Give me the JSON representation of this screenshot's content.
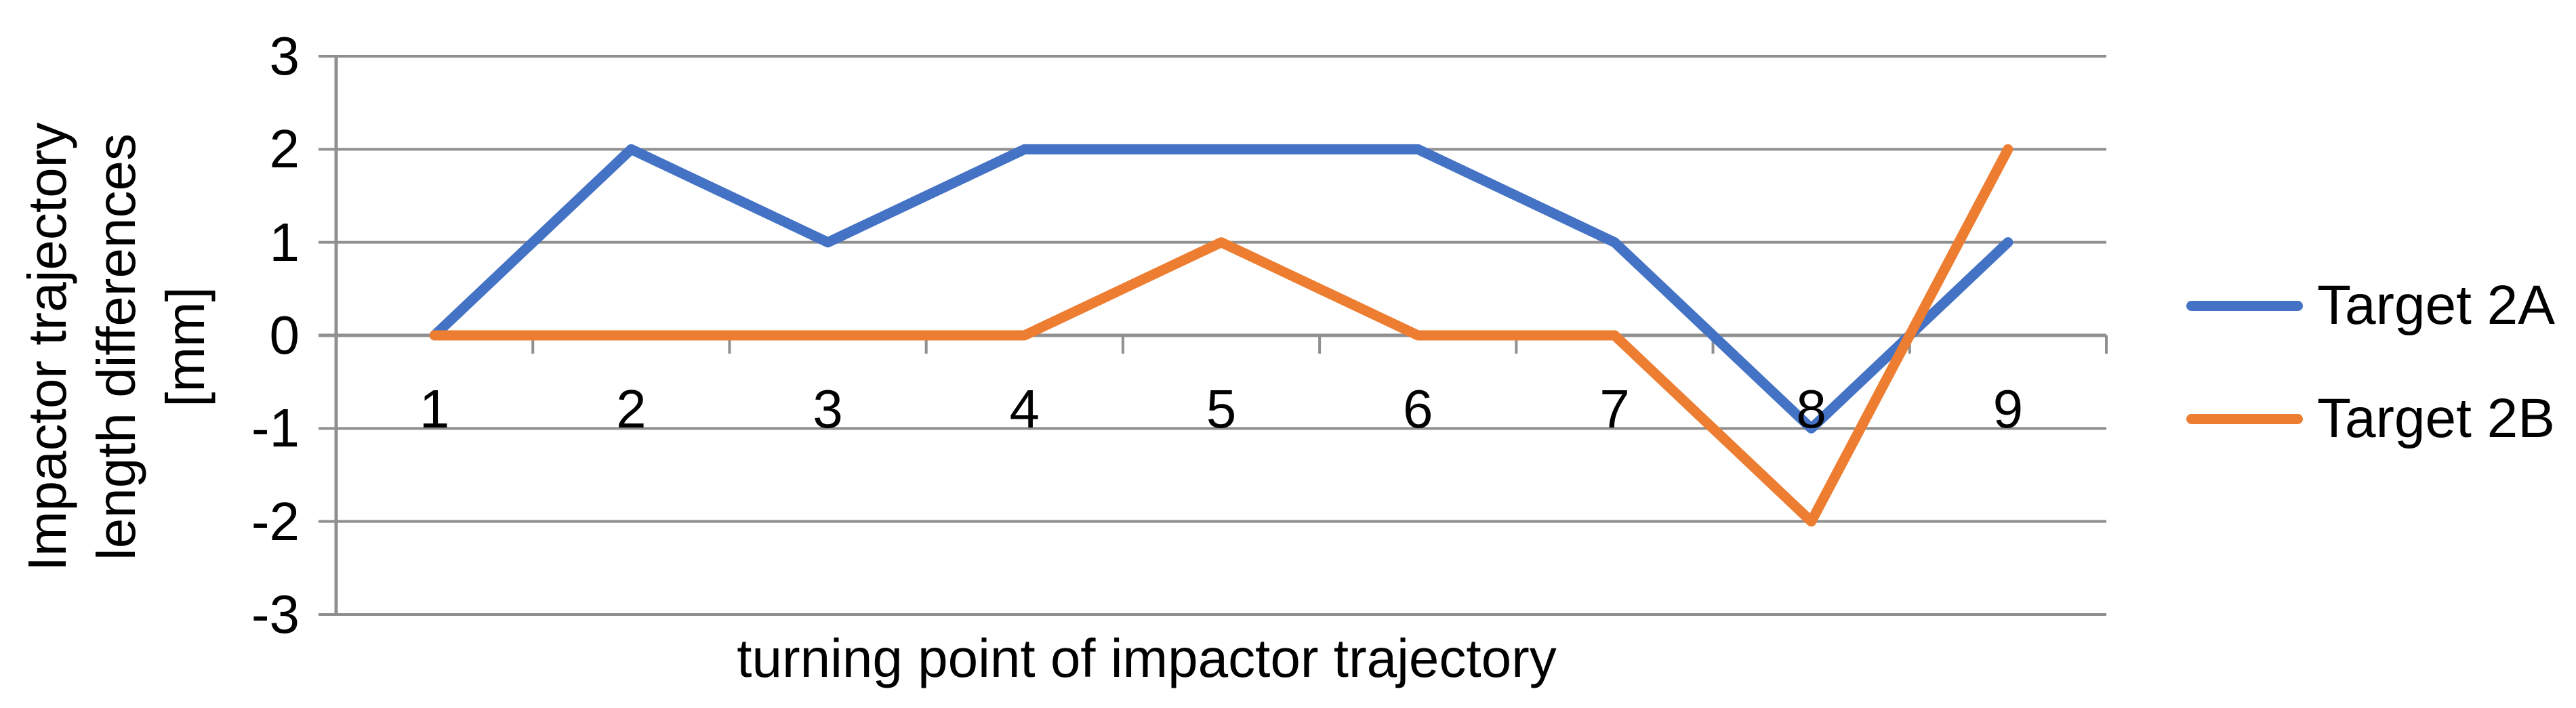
{
  "chart_data": {
    "type": "line",
    "categories": [
      "1",
      "2",
      "3",
      "4",
      "5",
      "6",
      "7",
      "8",
      "9"
    ],
    "series": [
      {
        "name": "Target 2A",
        "color": "#4472C4",
        "values": [
          0,
          2,
          1,
          2,
          2,
          2,
          1,
          -1,
          1
        ]
      },
      {
        "name": "Target 2B",
        "color": "#ED7D31",
        "values": [
          0,
          0,
          0,
          0,
          1,
          0,
          0,
          -2,
          2
        ]
      }
    ],
    "xlabel": "turning point of impactor trajectory",
    "ylabel": "Impactor trajectory\nlength differences\n[mm]",
    "ylim": [
      -3,
      3
    ],
    "yticks": [
      3,
      2,
      1,
      0,
      -1,
      -2,
      -3
    ],
    "grid": "horizontal",
    "grid_color": "#8f8f8f",
    "axis_color": "#8f8f8f",
    "legend_position": "right-middle"
  }
}
